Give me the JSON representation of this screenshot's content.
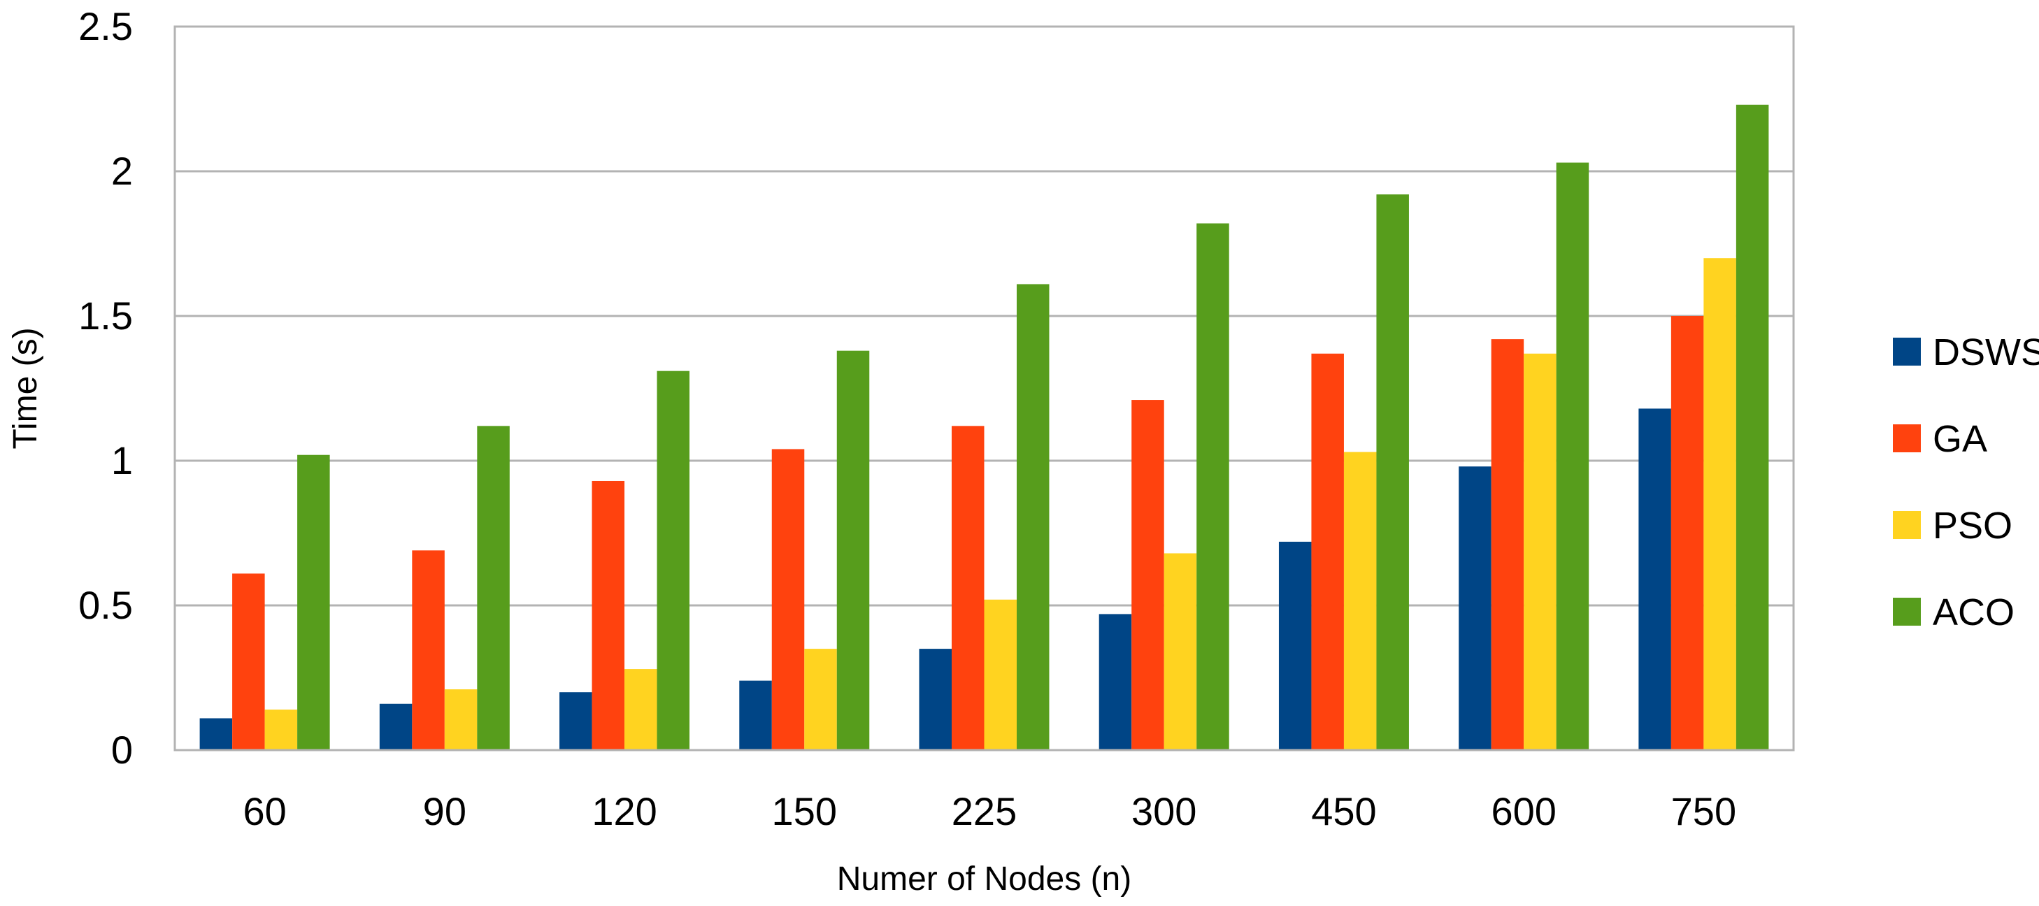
{
  "chart_data": {
    "type": "bar",
    "title": "",
    "xlabel": "Numer of Nodes (n)",
    "ylabel": "Time (s)",
    "categories": [
      "60",
      "90",
      "120",
      "150",
      "225",
      "300",
      "450",
      "600",
      "750"
    ],
    "series": [
      {
        "name": "DSWS",
        "color": "#004586",
        "values": [
          0.11,
          0.16,
          0.2,
          0.24,
          0.35,
          0.47,
          0.72,
          0.98,
          1.18
        ]
      },
      {
        "name": "GA",
        "color": "#ff420e",
        "values": [
          0.61,
          0.69,
          0.93,
          1.04,
          1.12,
          1.21,
          1.37,
          1.42,
          1.5
        ]
      },
      {
        "name": "PSO",
        "color": "#ffd320",
        "values": [
          0.14,
          0.21,
          0.28,
          0.35,
          0.52,
          0.68,
          1.03,
          1.37,
          1.7
        ]
      },
      {
        "name": "ACO",
        "color": "#579d1c",
        "values": [
          1.02,
          1.12,
          1.31,
          1.38,
          1.61,
          1.82,
          1.92,
          2.03,
          2.23
        ]
      }
    ],
    "ylim": [
      0,
      2.5
    ],
    "yticks": [
      "0",
      "0.5",
      "1",
      "1.5",
      "2",
      "2.5"
    ],
    "grid": true,
    "legend_position": "right"
  }
}
